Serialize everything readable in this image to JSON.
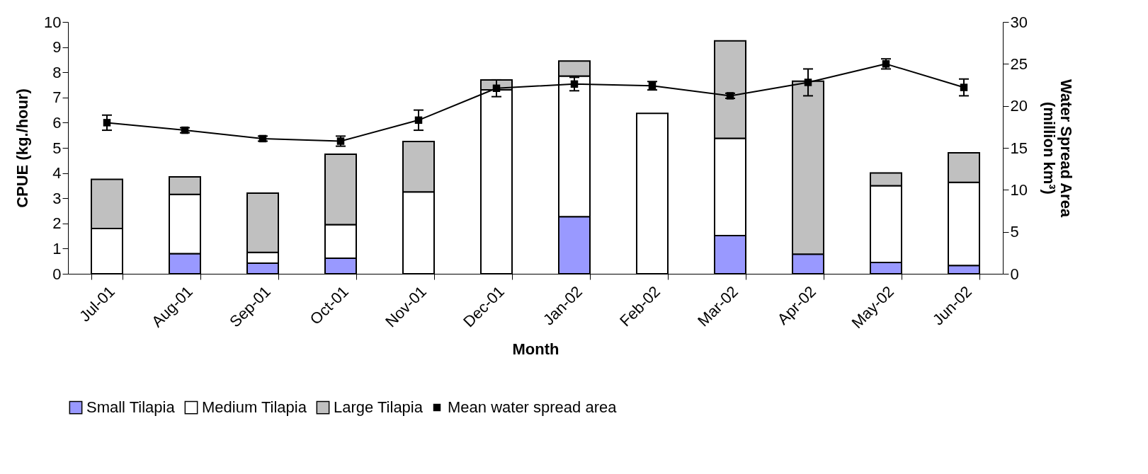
{
  "chart_data": {
    "type": "bar",
    "stacked": true,
    "xlabel": "Month",
    "ylabel": "CPUE (kg./hour)",
    "y2label": "Water Spread Area (million km³)",
    "categories": [
      "Jul-01",
      "Aug-01",
      "Sep-01",
      "Oct-01",
      "Nov-01",
      "Dec-01",
      "Jan-02",
      "Feb-02",
      "Mar-02",
      "Apr-02",
      "May-02",
      "Jun-02"
    ],
    "ylim": [
      0,
      10
    ],
    "yticks": [
      0,
      1,
      2,
      3,
      4,
      5,
      6,
      7,
      8,
      9,
      10
    ],
    "y2lim": [
      0,
      30
    ],
    "y2ticks": [
      0,
      5,
      10,
      15,
      20,
      25,
      30
    ],
    "series": [
      {
        "name": "Small Tilapia",
        "color": "#9999ff",
        "values": [
          0,
          0.8,
          0.42,
          0.62,
          0,
          0,
          2.27,
          0,
          1.52,
          0.78,
          0.45,
          0.33
        ]
      },
      {
        "name": "Medium Tilapia",
        "color": "#ffffff",
        "values": [
          1.8,
          2.35,
          0.43,
          1.33,
          3.25,
          7.3,
          5.58,
          6.37,
          3.86,
          0,
          3.05,
          3.3
        ]
      },
      {
        "name": "Large Tilapia",
        "color": "#c0c0c0",
        "values": [
          1.95,
          0.7,
          2.35,
          2.8,
          2.0,
          0.4,
          0.6,
          0,
          3.87,
          6.87,
          0.5,
          1.17
        ]
      },
      {
        "name": "Mean water spread area",
        "type": "line",
        "axis": "y2",
        "color": "#000000",
        "marker": "square",
        "values": [
          18.0,
          17.1,
          16.1,
          15.8,
          18.3,
          22.1,
          22.6,
          22.4,
          21.2,
          22.8,
          25.0,
          22.2
        ],
        "errors": [
          0.9,
          0.3,
          0.3,
          0.6,
          1.2,
          1.0,
          0.8,
          0.5,
          0.3,
          1.6,
          0.6,
          1.0
        ]
      }
    ],
    "grid": false,
    "legend": "bottom"
  }
}
